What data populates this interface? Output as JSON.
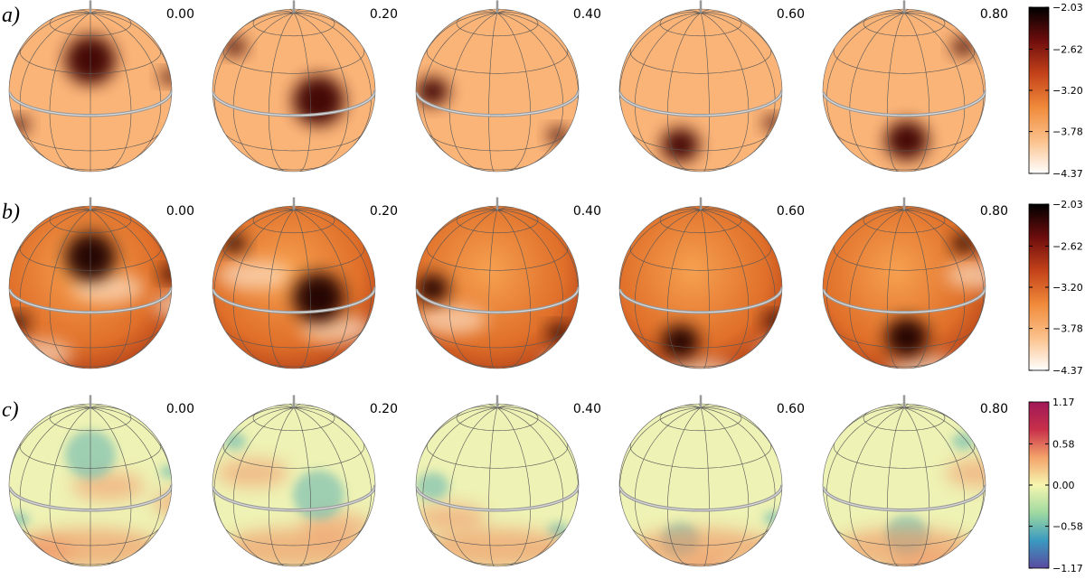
{
  "panels": [
    {
      "label": "a)",
      "phases": [
        "0.00",
        "0.20",
        "0.40",
        "0.60",
        "0.80"
      ],
      "colorbar": {
        "lim": [
          -4.37,
          -2.03
        ],
        "ticks": [
          {
            "value": -2.03,
            "label": "−2.03"
          },
          {
            "value": -2.62,
            "label": "−2.62"
          },
          {
            "value": -3.2,
            "label": "−3.20"
          },
          {
            "value": -3.78,
            "label": "−3.78"
          },
          {
            "value": -4.37,
            "label": "−4.37"
          }
        ],
        "colors": [
          "#ffffff",
          "#fbc08a",
          "#f08a3a",
          "#c4421a",
          "#6e0d0d",
          "#000000"
        ]
      }
    },
    {
      "label": "b)",
      "phases": [
        "0.00",
        "0.20",
        "0.40",
        "0.60",
        "0.80"
      ],
      "colorbar": {
        "lim": [
          -4.37,
          -2.03
        ],
        "ticks": [
          {
            "value": -2.03,
            "label": "−2.03"
          },
          {
            "value": -2.62,
            "label": "−2.62"
          },
          {
            "value": -3.2,
            "label": "−3.20"
          },
          {
            "value": -3.78,
            "label": "−3.78"
          },
          {
            "value": -4.37,
            "label": "−4.37"
          }
        ],
        "colors": [
          "#ffffff",
          "#fbc08a",
          "#f08a3a",
          "#c4421a",
          "#6e0d0d",
          "#000000"
        ]
      }
    },
    {
      "label": "c)",
      "phases": [
        "0.00",
        "0.20",
        "0.40",
        "0.60",
        "0.80"
      ],
      "colorbar": {
        "lim": [
          -1.17,
          1.17
        ],
        "ticks": [
          1.17,
          0.58,
          {
            "value": 0,
            "label": "0.00"
          },
          {
            "value": -0.58,
            "label": "−0.58"
          },
          {
            "value": -1.17,
            "label": "−1.17"
          }
        ],
        "colors": [
          "#5a4aa0",
          "#3a9ac0",
          "#9fd9a0",
          "#f6f6b0",
          "#f4a36a",
          "#c8304a",
          "#a01858"
        ]
      }
    }
  ]
}
